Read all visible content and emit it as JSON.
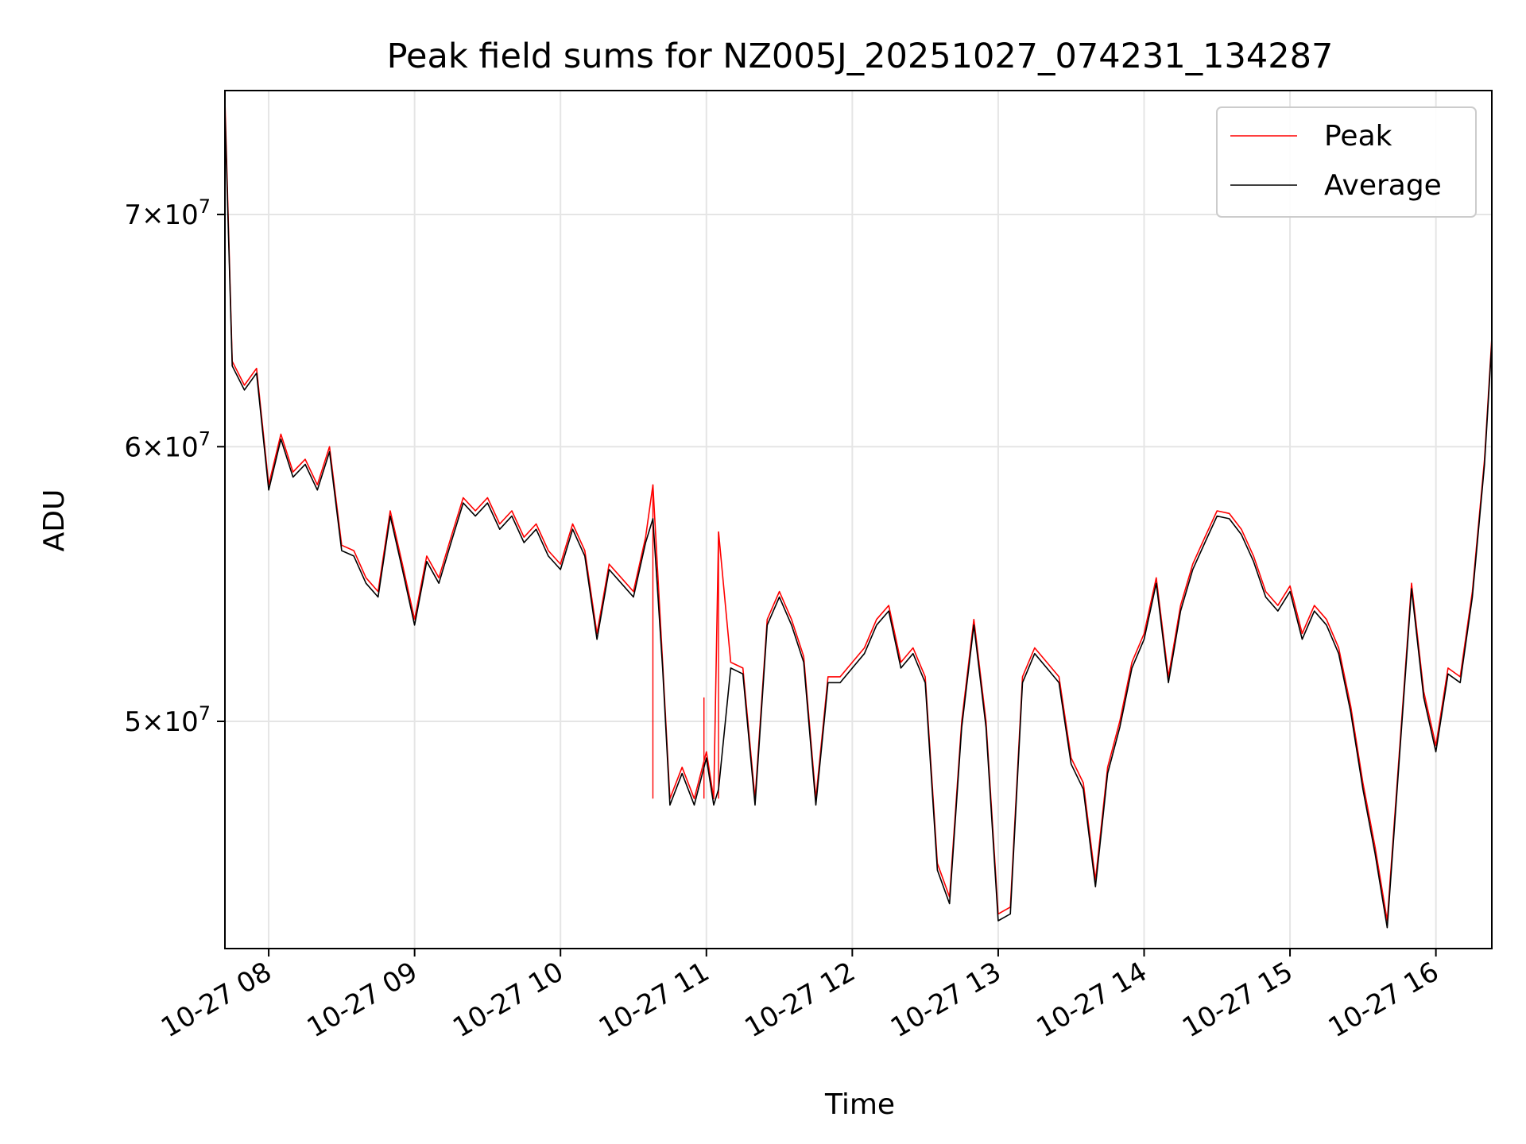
{
  "chart_data": {
    "type": "line",
    "title": "Peak field sums for NZ005J_20251027_074231_134287",
    "xlabel": "Time",
    "ylabel": "ADU",
    "x_ticks": [
      "10-27 08",
      "10-27 09",
      "10-27 10",
      "10-27 11",
      "10-27 12",
      "10-27 13",
      "10-27 14",
      "10-27 15",
      "10-27 16"
    ],
    "y_scale": "log",
    "y_ticks": [
      {
        "value": 70000000,
        "mantissa": "7",
        "exponent": "7"
      },
      {
        "value": 60000000,
        "mantissa": "6",
        "exponent": "7"
      },
      {
        "value": 50000000,
        "mantissa": "5",
        "exponent": "7"
      }
    ],
    "xlim": [
      "2025-10-27 07:42",
      "2025-10-27 16:23"
    ],
    "ylim": [
      43000000,
      76000000
    ],
    "grid": true,
    "legend_placement": "top-right",
    "series": [
      {
        "name": "Peak",
        "color": "#ff0000",
        "x": [
          "2025-10-27 07:42",
          "2025-10-27 07:45",
          "2025-10-27 07:50",
          "2025-10-27 07:55",
          "2025-10-27 08:00",
          "2025-10-27 08:05",
          "2025-10-27 08:10",
          "2025-10-27 08:15",
          "2025-10-27 08:20",
          "2025-10-27 08:25",
          "2025-10-27 08:30",
          "2025-10-27 08:35",
          "2025-10-27 08:40",
          "2025-10-27 08:45",
          "2025-10-27 08:50",
          "2025-10-27 08:55",
          "2025-10-27 09:00",
          "2025-10-27 09:05",
          "2025-10-27 09:10",
          "2025-10-27 09:15",
          "2025-10-27 09:20",
          "2025-10-27 09:25",
          "2025-10-27 09:30",
          "2025-10-27 09:35",
          "2025-10-27 09:40",
          "2025-10-27 09:45",
          "2025-10-27 09:50",
          "2025-10-27 09:55",
          "2025-10-27 10:00",
          "2025-10-27 10:05",
          "2025-10-27 10:10",
          "2025-10-27 10:15",
          "2025-10-27 10:20",
          "2025-10-27 10:25",
          "2025-10-27 10:30",
          "2025-10-27 10:35",
          "2025-10-27 10:38",
          "2025-10-27 10:42",
          "2025-10-27 10:45",
          "2025-10-27 10:50",
          "2025-10-27 10:55",
          "2025-10-27 11:00",
          "2025-10-27 11:03",
          "2025-10-27 11:05",
          "2025-10-27 11:10",
          "2025-10-27 11:15",
          "2025-10-27 11:20",
          "2025-10-27 11:25",
          "2025-10-27 11:30",
          "2025-10-27 11:35",
          "2025-10-27 11:40",
          "2025-10-27 11:45",
          "2025-10-27 11:50",
          "2025-10-27 11:55",
          "2025-10-27 12:00",
          "2025-10-27 12:05",
          "2025-10-27 12:10",
          "2025-10-27 12:15",
          "2025-10-27 12:20",
          "2025-10-27 12:25",
          "2025-10-27 12:30",
          "2025-10-27 12:35",
          "2025-10-27 12:40",
          "2025-10-27 12:45",
          "2025-10-27 12:50",
          "2025-10-27 12:55",
          "2025-10-27 13:00",
          "2025-10-27 13:05",
          "2025-10-27 13:10",
          "2025-10-27 13:15",
          "2025-10-27 13:20",
          "2025-10-27 13:25",
          "2025-10-27 13:30",
          "2025-10-27 13:35",
          "2025-10-27 13:40",
          "2025-10-27 13:45",
          "2025-10-27 13:50",
          "2025-10-27 13:55",
          "2025-10-27 14:00",
          "2025-10-27 14:05",
          "2025-10-27 14:10",
          "2025-10-27 14:15",
          "2025-10-27 14:20",
          "2025-10-27 14:25",
          "2025-10-27 14:30",
          "2025-10-27 14:35",
          "2025-10-27 14:40",
          "2025-10-27 14:45",
          "2025-10-27 14:50",
          "2025-10-27 14:55",
          "2025-10-27 15:00",
          "2025-10-27 15:05",
          "2025-10-27 15:10",
          "2025-10-27 15:15",
          "2025-10-27 15:20",
          "2025-10-27 15:25",
          "2025-10-27 15:30",
          "2025-10-27 15:35",
          "2025-10-27 15:40",
          "2025-10-27 15:45",
          "2025-10-27 15:50",
          "2025-10-27 15:55",
          "2025-10-27 16:00",
          "2025-10-27 16:05",
          "2025-10-27 16:10",
          "2025-10-27 16:15",
          "2025-10-27 16:20",
          "2025-10-27 16:23"
        ],
        "y": [
          75500000,
          63500000,
          62500000,
          63200000,
          58500000,
          60500000,
          59000000,
          59500000,
          58500000,
          60000000,
          56200000,
          56000000,
          55000000,
          54500000,
          57500000,
          55500000,
          53500000,
          55800000,
          55000000,
          56500000,
          58000000,
          57500000,
          58000000,
          57000000,
          57500000,
          56500000,
          57000000,
          56000000,
          55500000,
          57000000,
          56000000,
          53000000,
          55500000,
          55000000,
          54500000,
          56500000,
          58500000,
          52000000,
          47500000,
          48500000,
          47500000,
          49000000,
          47500000,
          56700000,
          52000000,
          51800000,
          47500000,
          53500000,
          54500000,
          53500000,
          52200000,
          47500000,
          51500000,
          51500000,
          52000000,
          52500000,
          53500000,
          54000000,
          52000000,
          52500000,
          51500000,
          45500000,
          44500000,
          50000000,
          53500000,
          50000000,
          44000000,
          44200000,
          51500000,
          52500000,
          52000000,
          51500000,
          48800000,
          48000000,
          45000000,
          48500000,
          50000000,
          52000000,
          53000000,
          55000000,
          51500000,
          54000000,
          55500000,
          56500000,
          57500000,
          57400000,
          56800000,
          55800000,
          54500000,
          54000000,
          54700000,
          53000000,
          54000000,
          53500000,
          52500000,
          50500000,
          48000000,
          46000000,
          43800000,
          49000000,
          54800000,
          51000000,
          49200000,
          51800000,
          51500000,
          54500000,
          59500000,
          64500000
        ],
        "spikes": [
          {
            "x": "2025-10-27 10:38",
            "y": 58500000
          },
          {
            "x": "2025-10-27 10:59",
            "y": 50800000
          },
          {
            "x": "2025-10-27 11:05",
            "y": 56700000
          }
        ]
      },
      {
        "name": "Average",
        "color": "#000000",
        "x": [
          "2025-10-27 07:42",
          "2025-10-27 07:45",
          "2025-10-27 07:50",
          "2025-10-27 07:55",
          "2025-10-27 08:00",
          "2025-10-27 08:05",
          "2025-10-27 08:10",
          "2025-10-27 08:15",
          "2025-10-27 08:20",
          "2025-10-27 08:25",
          "2025-10-27 08:30",
          "2025-10-27 08:35",
          "2025-10-27 08:40",
          "2025-10-27 08:45",
          "2025-10-27 08:50",
          "2025-10-27 08:55",
          "2025-10-27 09:00",
          "2025-10-27 09:05",
          "2025-10-27 09:10",
          "2025-10-27 09:15",
          "2025-10-27 09:20",
          "2025-10-27 09:25",
          "2025-10-27 09:30",
          "2025-10-27 09:35",
          "2025-10-27 09:40",
          "2025-10-27 09:45",
          "2025-10-27 09:50",
          "2025-10-27 09:55",
          "2025-10-27 10:00",
          "2025-10-27 10:05",
          "2025-10-27 10:10",
          "2025-10-27 10:15",
          "2025-10-27 10:20",
          "2025-10-27 10:25",
          "2025-10-27 10:30",
          "2025-10-27 10:35",
          "2025-10-27 10:38",
          "2025-10-27 10:42",
          "2025-10-27 10:45",
          "2025-10-27 10:50",
          "2025-10-27 10:55",
          "2025-10-27 11:00",
          "2025-10-27 11:03",
          "2025-10-27 11:05",
          "2025-10-27 11:10",
          "2025-10-27 11:15",
          "2025-10-27 11:20",
          "2025-10-27 11:25",
          "2025-10-27 11:30",
          "2025-10-27 11:35",
          "2025-10-27 11:40",
          "2025-10-27 11:45",
          "2025-10-27 11:50",
          "2025-10-27 11:55",
          "2025-10-27 12:00",
          "2025-10-27 12:05",
          "2025-10-27 12:10",
          "2025-10-27 12:15",
          "2025-10-27 12:20",
          "2025-10-27 12:25",
          "2025-10-27 12:30",
          "2025-10-27 12:35",
          "2025-10-27 12:40",
          "2025-10-27 12:45",
          "2025-10-27 12:50",
          "2025-10-27 12:55",
          "2025-10-27 13:00",
          "2025-10-27 13:05",
          "2025-10-27 13:10",
          "2025-10-27 13:15",
          "2025-10-27 13:20",
          "2025-10-27 13:25",
          "2025-10-27 13:30",
          "2025-10-27 13:35",
          "2025-10-27 13:40",
          "2025-10-27 13:45",
          "2025-10-27 13:50",
          "2025-10-27 13:55",
          "2025-10-27 14:00",
          "2025-10-27 14:05",
          "2025-10-27 14:10",
          "2025-10-27 14:15",
          "2025-10-27 14:20",
          "2025-10-27 14:25",
          "2025-10-27 14:30",
          "2025-10-27 14:35",
          "2025-10-27 14:40",
          "2025-10-27 14:45",
          "2025-10-27 14:50",
          "2025-10-27 14:55",
          "2025-10-27 15:00",
          "2025-10-27 15:05",
          "2025-10-27 15:10",
          "2025-10-27 15:15",
          "2025-10-27 15:20",
          "2025-10-27 15:25",
          "2025-10-27 15:30",
          "2025-10-27 15:35",
          "2025-10-27 15:40",
          "2025-10-27 15:45",
          "2025-10-27 15:50",
          "2025-10-27 15:55",
          "2025-10-27 16:00",
          "2025-10-27 16:05",
          "2025-10-27 16:10",
          "2025-10-27 16:15",
          "2025-10-27 16:20",
          "2025-10-27 16:23"
        ],
        "y": [
          75000000,
          63300000,
          62300000,
          63000000,
          58300000,
          60300000,
          58800000,
          59300000,
          58300000,
          59800000,
          56000000,
          55800000,
          54800000,
          54300000,
          57300000,
          55300000,
          53300000,
          55600000,
          54800000,
          56300000,
          57800000,
          57300000,
          57800000,
          56800000,
          57300000,
          56300000,
          56800000,
          55800000,
          55300000,
          56800000,
          55800000,
          52800000,
          55300000,
          54800000,
          54300000,
          56300000,
          57200000,
          51800000,
          47300000,
          48300000,
          47300000,
          48800000,
          47300000,
          47800000,
          51800000,
          51600000,
          47300000,
          53300000,
          54300000,
          53300000,
          52000000,
          47300000,
          51300000,
          51300000,
          51800000,
          52300000,
          53300000,
          53800000,
          51800000,
          52300000,
          51300000,
          45300000,
          44300000,
          49800000,
          53300000,
          49800000,
          43800000,
          44000000,
          51300000,
          52300000,
          51800000,
          51300000,
          48600000,
          47800000,
          44800000,
          48300000,
          49800000,
          51800000,
          52800000,
          54800000,
          51300000,
          53800000,
          55300000,
          56300000,
          57300000,
          57200000,
          56600000,
          55600000,
          54300000,
          53800000,
          54500000,
          52800000,
          53800000,
          53300000,
          52300000,
          50300000,
          47800000,
          45800000,
          43600000,
          48800000,
          54600000,
          50800000,
          49000000,
          51600000,
          51300000,
          54300000,
          59300000,
          64300000
        ]
      }
    ]
  }
}
